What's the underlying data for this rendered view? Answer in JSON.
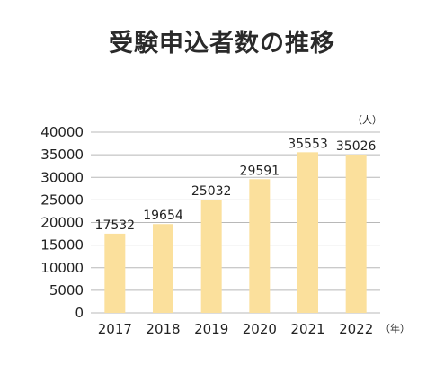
{
  "chart_data": {
    "type": "bar",
    "title": "受験申込者数の推移",
    "categories": [
      "2017",
      "2018",
      "2019",
      "2020",
      "2021",
      "2022"
    ],
    "values": [
      17532,
      19654,
      25032,
      29591,
      35553,
      35026
    ],
    "data_labels": [
      "17532",
      "19654",
      "25032",
      "29591",
      "35553",
      "35026"
    ],
    "y_ticks": [
      0,
      5000,
      10000,
      15000,
      20000,
      25000,
      30000,
      35000,
      40000
    ],
    "ylim": [
      0,
      40000
    ],
    "y_unit": "（人）",
    "x_unit": "（年）",
    "grid": true,
    "bar_color": "#fbe09c",
    "grid_color": "#b8b8b8"
  }
}
